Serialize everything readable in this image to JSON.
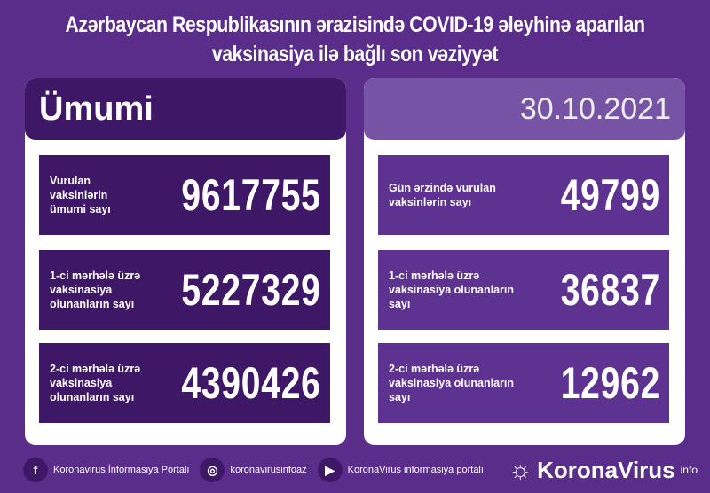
{
  "title": {
    "line1": "Azərbaycan Respublikasının ərazisində COVID-19 əleyhinə aparılan",
    "line2": "vaksinasiya ilə bağlı son vəziyyət"
  },
  "left": {
    "header": "Ümumi",
    "rows": [
      {
        "label": "Vurulan vaksinlərin ümumi sayı",
        "value": "9617755"
      },
      {
        "label": "1-ci mərhələ üzrə vaksinasiya olunanların sayı",
        "value": "5227329"
      },
      {
        "label": "2-ci mərhələ üzrə vaksinasiya olunanların sayı",
        "value": "4390426"
      }
    ]
  },
  "right": {
    "header": "30.10.2021",
    "rows": [
      {
        "label": "Gün ərzində vurulan vaksinlərin sayı",
        "value": "49799"
      },
      {
        "label": "1-ci mərhələ üzrə vaksinasiya olunanların sayı",
        "value": "36837"
      },
      {
        "label": "2-ci mərhələ üzrə vaksinasiya olunanların sayı",
        "value": "12962"
      }
    ]
  },
  "footer": {
    "facebook": "Koronavirus İnformasiya Portalı",
    "instagram": "koronavirusinfoaz",
    "youtube": "KoronaVirus informasiya portalı",
    "brand": "KoronaVirus",
    "brand_sup": "info"
  },
  "colors": {
    "background": "#5a2d8a",
    "dark": "#3e1766",
    "light": "#7653a5"
  }
}
